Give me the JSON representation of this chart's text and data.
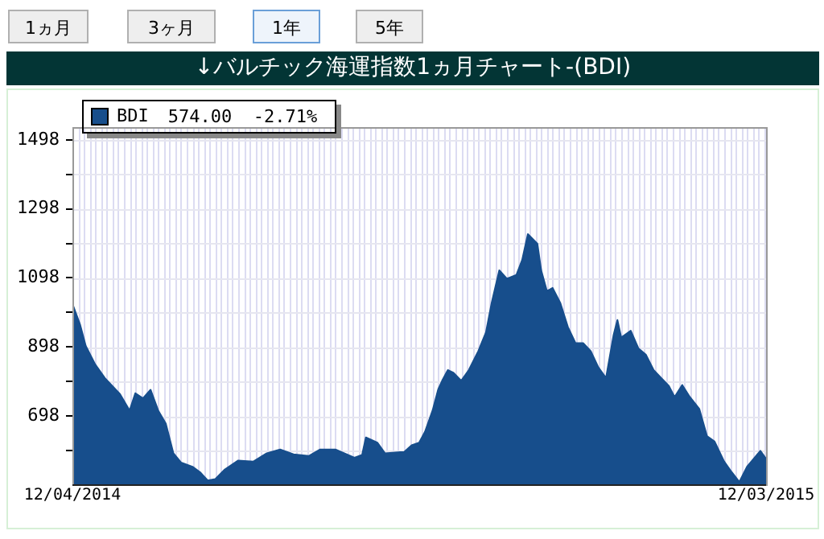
{
  "chart_data": {
    "type": "area",
    "title": "↓バルチック海運指数1ヵ月チャート-(BDI)",
    "annotations": [
      "1ヵ月",
      "3ヶ月",
      "1年",
      "5年",
      "574.00",
      "-2.71%"
    ],
    "x": [
      "2014-12-04",
      "2014-12-08",
      "2014-12-11",
      "2014-12-16",
      "2014-12-21",
      "2014-12-29",
      "2015-01-03",
      "2015-01-06",
      "2015-01-10",
      "2015-01-14",
      "2015-01-18",
      "2015-01-22",
      "2015-01-26",
      "2015-01-30",
      "2015-02-05",
      "2015-02-09",
      "2015-02-13",
      "2015-02-17",
      "2015-02-22",
      "2015-03-01",
      "2015-03-09",
      "2015-03-16",
      "2015-03-23",
      "2015-03-30",
      "2015-04-07",
      "2015-04-13",
      "2015-04-21",
      "2015-05-01",
      "2015-05-05",
      "2015-05-07",
      "2015-05-13",
      "2015-05-17",
      "2015-05-25",
      "2015-05-27",
      "2015-05-31",
      "2015-06-04",
      "2015-06-07",
      "2015-06-11",
      "2015-06-14",
      "2015-06-16",
      "2015-06-19",
      "2015-06-22",
      "2015-06-26",
      "2015-06-30",
      "2015-07-05",
      "2015-07-09",
      "2015-07-12",
      "2015-07-16",
      "2015-07-20",
      "2015-07-25",
      "2015-07-28",
      "2015-07-31",
      "2015-08-05",
      "2015-08-07",
      "2015-08-10",
      "2015-08-13",
      "2015-08-17",
      "2015-08-21",
      "2015-08-25",
      "2015-08-29",
      "2015-09-02",
      "2015-09-06",
      "2015-09-10",
      "2015-09-14",
      "2015-09-16",
      "2015-09-18",
      "2015-09-23",
      "2015-09-27",
      "2015-10-01",
      "2015-10-05",
      "2015-10-09",
      "2015-10-13",
      "2015-10-16",
      "2015-10-20",
      "2015-10-24",
      "2015-10-29",
      "2015-11-02",
      "2015-11-06",
      "2015-11-11",
      "2015-11-15",
      "2015-11-19",
      "2015-11-23",
      "2015-11-30",
      "2015-12-03"
    ],
    "series": [
      {
        "name": "BDI",
        "color": "#174e8c",
        "values": [
          1023,
          963,
          901,
          847,
          808,
          761,
          714,
          764,
          749,
          774,
          714,
          676,
          590,
          563,
          551,
          535,
          511,
          515,
          543,
          569,
          566,
          590,
          601,
          587,
          582,
          601,
          601,
          577,
          585,
          636,
          621,
          590,
          593,
          593,
          613,
          621,
          652,
          714,
          776,
          800,
          831,
          823,
          800,
          831,
          886,
          940,
          1026,
          1120,
          1096,
          1107,
          1150,
          1225,
          1197,
          1120,
          1060,
          1069,
          1026,
          956,
          909,
          909,
          886,
          839,
          808,
          933,
          976,
          925,
          945,
          894,
          875,
          831,
          808,
          785,
          753,
          788,
          753,
          718,
          640,
          624,
          566,
          535,
          507,
          551,
          597,
          574
        ]
      }
    ],
    "xlim": [
      "2014-12-04",
      "2015-12-03"
    ],
    "xticks": [
      {
        "value": "2014-12-04",
        "label": "12/04/2014"
      },
      {
        "value": "2015-12-03",
        "label": "12/03/2015"
      }
    ],
    "ylim": [
      500,
      1535
    ],
    "yticks": [
      {
        "value": 598,
        "label": null
      },
      698,
      {
        "value": 798,
        "label": null
      },
      898,
      {
        "value": 998,
        "label": null
      },
      1098,
      {
        "value": 1198,
        "label": null
      },
      1298,
      {
        "value": 1398,
        "label": null
      },
      1498
    ],
    "grid": true,
    "legend": "top left"
  }
}
